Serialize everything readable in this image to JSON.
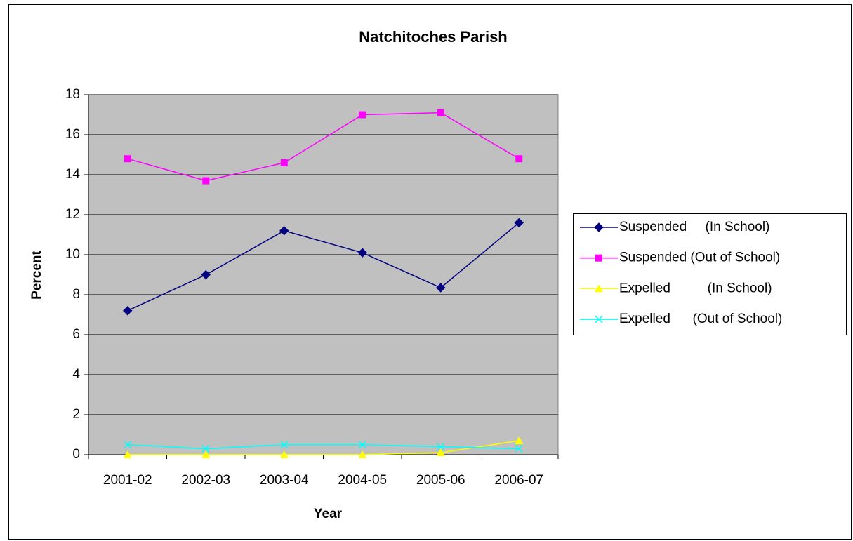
{
  "chart_data": {
    "type": "line",
    "title": "Natchitoches Parish",
    "xlabel": "Year",
    "ylabel": "Percent",
    "categories": [
      "2001-02",
      "2002-03",
      "2003-04",
      "2004-05",
      "2005-06",
      "2006-07"
    ],
    "series": [
      {
        "name": "Suspended     (In School)",
        "color": "#000080",
        "marker": "diamond",
        "values": [
          7.2,
          9.0,
          11.2,
          10.1,
          8.35,
          11.6
        ]
      },
      {
        "name": "Suspended (Out of School)",
        "color": "#FF00FF",
        "marker": "square",
        "values": [
          14.8,
          13.7,
          14.6,
          17.0,
          17.1,
          14.8
        ]
      },
      {
        "name": "Expelled          (In School)",
        "color": "#FFFF00",
        "marker": "triangle",
        "values": [
          0,
          0,
          0,
          0,
          0.1,
          0.7
        ]
      },
      {
        "name": "Expelled      (Out of School)",
        "color": "#00FFFF",
        "marker": "x",
        "values": [
          0.5,
          0.3,
          0.5,
          0.5,
          0.4,
          0.3
        ]
      }
    ],
    "ylim": [
      0,
      18
    ],
    "yticks": [
      0,
      2,
      4,
      6,
      8,
      10,
      12,
      14,
      16,
      18
    ],
    "grid": true,
    "plot_background": "#C0C0C0",
    "legend": "right"
  }
}
